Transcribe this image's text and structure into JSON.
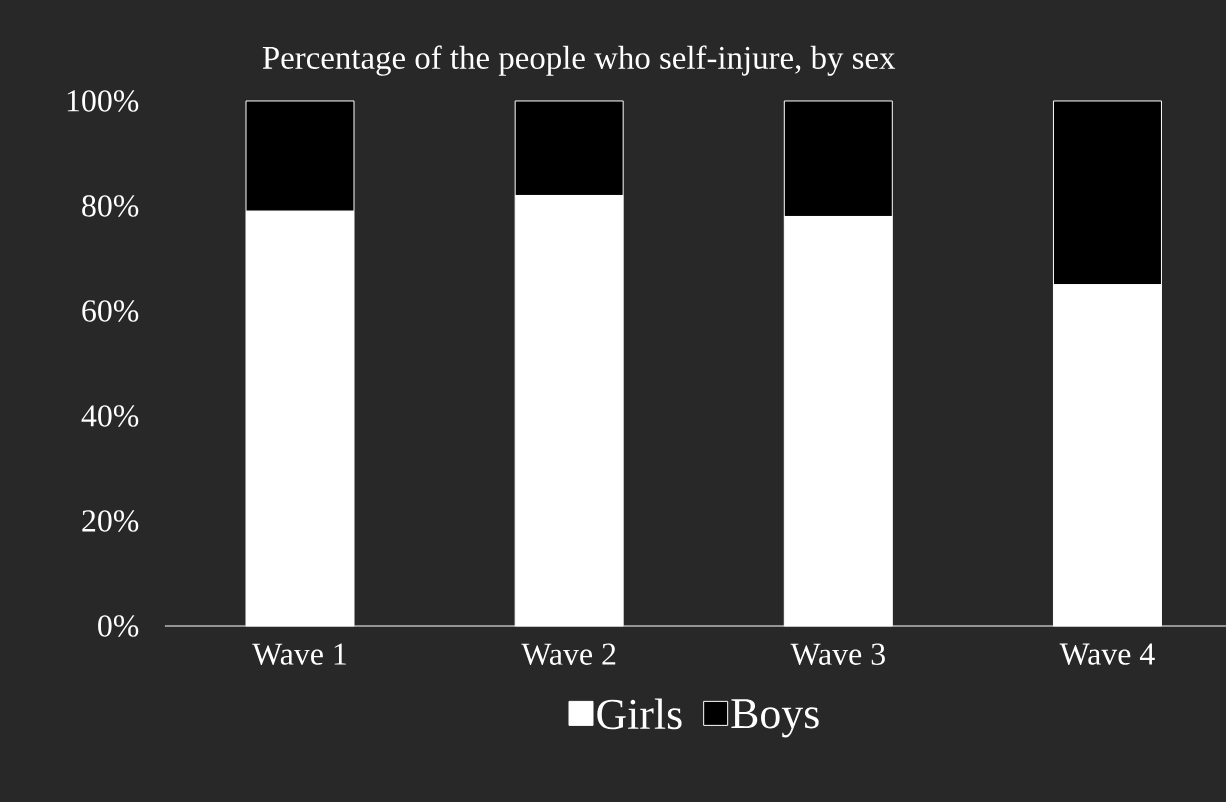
{
  "chart_data": {
    "type": "bar",
    "title": "Percentage of the people who self-injure, by sex",
    "categories": [
      "Wave 1",
      "Wave 2",
      "Wave 3",
      "Wave 4"
    ],
    "stacked": true,
    "series": [
      {
        "name": "Girls",
        "color": "#ffffff",
        "values": [
          79,
          82,
          78,
          65
        ]
      },
      {
        "name": "Boys",
        "color": "#000000",
        "values": [
          21,
          18,
          22,
          35
        ]
      }
    ],
    "ylim": [
      0,
      100
    ],
    "yticks": [
      {
        "value": 0,
        "label": "0%"
      },
      {
        "value": 20,
        "label": "20%"
      },
      {
        "value": 40,
        "label": "40%"
      },
      {
        "value": 60,
        "label": "60%"
      },
      {
        "value": 80,
        "label": "80%"
      },
      {
        "value": 100,
        "label": "100%"
      }
    ],
    "legend": "bottom"
  }
}
